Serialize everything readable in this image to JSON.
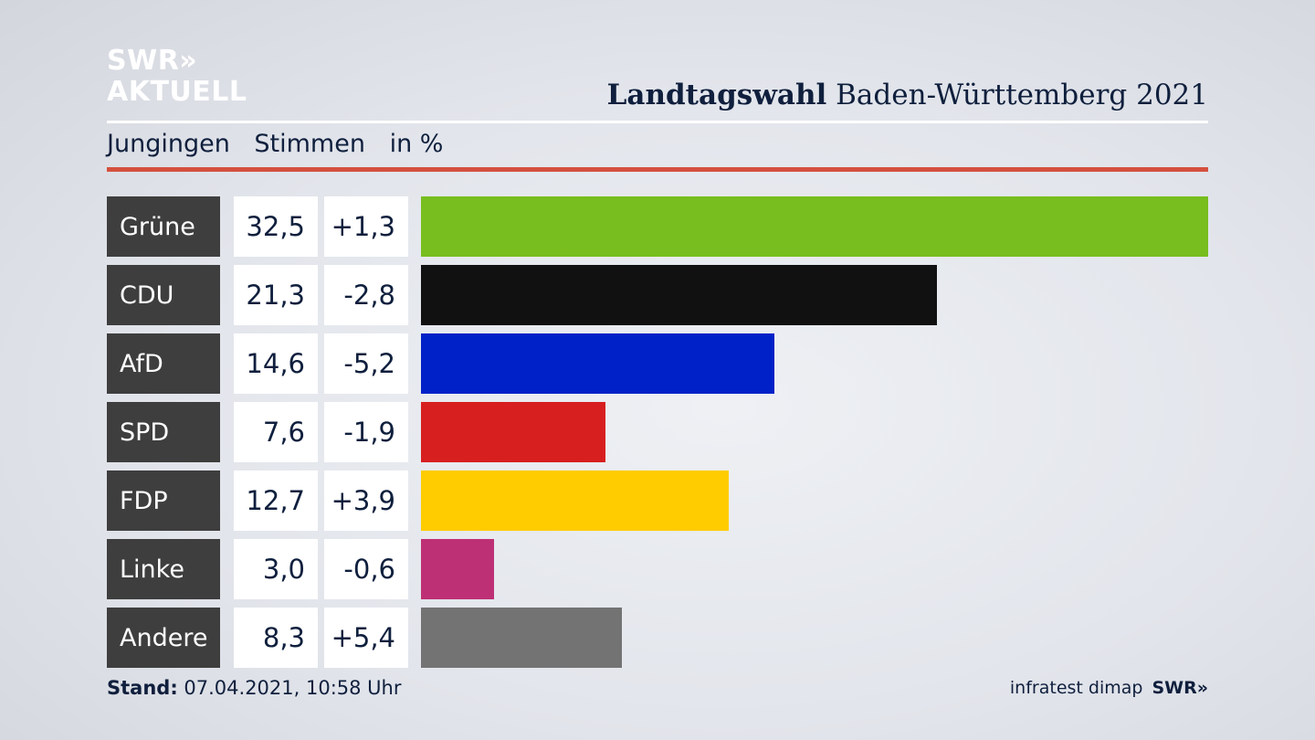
{
  "logo": {
    "line1": "SWR»",
    "line2": "AKTUELL"
  },
  "header": {
    "title_bold": "Landtagswahl",
    "title_rest": " Baden-Württemberg 2021",
    "location": "Jungingen",
    "metric": "Stimmen",
    "unit": "in %"
  },
  "colors": {
    "accent_red": "#d4503e",
    "label_bg": "#3e3e3e"
  },
  "chart_data": {
    "type": "bar",
    "orientation": "horizontal",
    "categories": [
      "Grüne",
      "CDU",
      "AfD",
      "SPD",
      "FDP",
      "Linke",
      "Andere"
    ],
    "values": [
      32.5,
      21.3,
      14.6,
      7.6,
      12.7,
      3.0,
      8.3
    ],
    "value_labels": [
      "32,5",
      "21,3",
      "14,6",
      "7,6",
      "12,7",
      "3,0",
      "8,3"
    ],
    "changes": [
      "+1,3",
      "-2,8",
      "-5,2",
      "-1,9",
      "+3,9",
      "-0,6",
      "+5,4"
    ],
    "bar_colors": [
      "#78be1e",
      "#111111",
      "#0021c7",
      "#d71f1f",
      "#ffcc00",
      "#be3075",
      "#737373"
    ],
    "xlim": [
      0,
      32.5
    ],
    "grid": false,
    "legend": "none"
  },
  "footer": {
    "stand_label": "Stand:",
    "stand_value": " 07.04.2021, 10:58 Uhr",
    "source": "infratest dimap",
    "brand": "SWR»"
  }
}
